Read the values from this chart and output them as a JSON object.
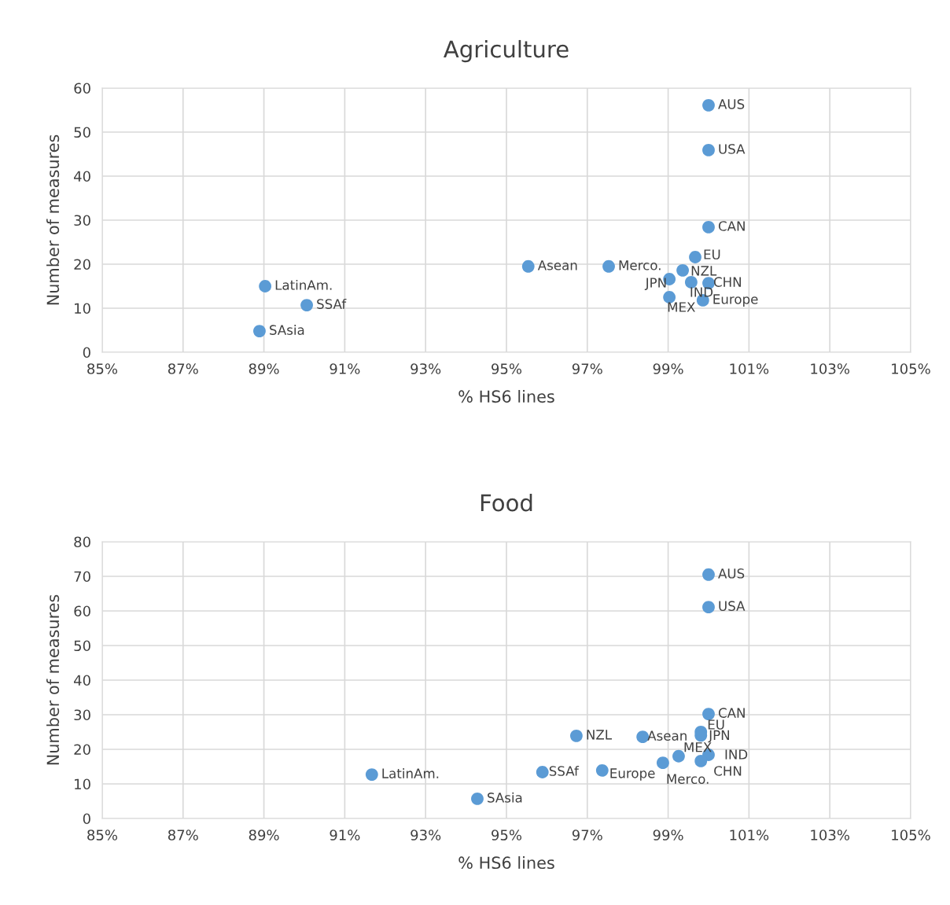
{
  "chart_data": [
    {
      "type": "scatter",
      "title": "Agriculture",
      "xlabel": "% HS6 lines",
      "ylabel": "Number of measures",
      "xlim": [
        85,
        105
      ],
      "ylim": [
        0,
        60
      ],
      "xticks": [
        {
          "value": 85,
          "label": "85%"
        },
        {
          "value": 87,
          "label": "87%"
        },
        {
          "value": 89,
          "label": "89%"
        },
        {
          "value": 91,
          "label": "91%"
        },
        {
          "value": 93,
          "label": "93%"
        },
        {
          "value": 95,
          "label": "95%"
        },
        {
          "value": 97,
          "label": "97%"
        },
        {
          "value": 99,
          "label": "99%"
        },
        {
          "value": 101,
          "label": "101%"
        },
        {
          "value": 103,
          "label": "103%"
        },
        {
          "value": 105,
          "label": "105%"
        }
      ],
      "yticks": [
        0,
        10,
        20,
        30,
        40,
        50,
        60
      ],
      "grid": true,
      "marker": "circle",
      "series": [
        {
          "color": "#5b9bd5",
          "x": [
            100.0,
            100.0,
            100.0,
            99.67,
            95.54,
            97.53,
            99.36,
            99.03,
            99.57,
            100.0,
            99.03,
            99.86,
            89.03,
            90.06,
            88.89
          ],
          "values": [
            56.1,
            45.9,
            28.4,
            21.6,
            19.5,
            19.5,
            18.6,
            16.6,
            15.9,
            15.7,
            12.5,
            11.8,
            15.0,
            10.7,
            4.8
          ]
        }
      ],
      "annotations": [
        {
          "text": "AUS",
          "x": 100.0,
          "y": 56.1
        },
        {
          "text": "USA",
          "x": 100.0,
          "y": 45.9
        },
        {
          "text": "CAN",
          "x": 100.0,
          "y": 28.4
        },
        {
          "text": "EU",
          "x": 99.67,
          "y": 21.6
        },
        {
          "text": "Asean",
          "x": 95.54,
          "y": 19.5
        },
        {
          "text": "Merco.",
          "x": 97.53,
          "y": 19.5
        },
        {
          "text": "NZL",
          "x": 99.36,
          "y": 18.6
        },
        {
          "text": "JPN",
          "x": 99.03,
          "y": 16.6
        },
        {
          "text": "IND",
          "x": 99.57,
          "y": 15.9
        },
        {
          "text": "CHN",
          "x": 100.0,
          "y": 15.7
        },
        {
          "text": "MEX",
          "x": 99.03,
          "y": 12.5
        },
        {
          "text": "Europe",
          "x": 99.86,
          "y": 11.8
        },
        {
          "text": "LatinAm.",
          "x": 89.03,
          "y": 15.0
        },
        {
          "text": "SSAf",
          "x": 90.06,
          "y": 10.7
        },
        {
          "text": "SAsia",
          "x": 88.89,
          "y": 4.8
        }
      ]
    },
    {
      "type": "scatter",
      "title": "Food",
      "xlabel": "% HS6 lines",
      "ylabel": "Number of measures",
      "xlim": [
        85,
        105
      ],
      "ylim": [
        0,
        80
      ],
      "xticks": [
        {
          "value": 85,
          "label": "85%"
        },
        {
          "value": 87,
          "label": "87%"
        },
        {
          "value": 89,
          "label": "89%"
        },
        {
          "value": 91,
          "label": "91%"
        },
        {
          "value": 93,
          "label": "93%"
        },
        {
          "value": 95,
          "label": "95%"
        },
        {
          "value": 97,
          "label": "97%"
        },
        {
          "value": 99,
          "label": "99%"
        },
        {
          "value": 101,
          "label": "101%"
        },
        {
          "value": 103,
          "label": "103%"
        },
        {
          "value": 105,
          "label": "105%"
        }
      ],
      "yticks": [
        0,
        10,
        20,
        30,
        40,
        50,
        60,
        70,
        80
      ],
      "grid": true,
      "marker": "circle",
      "series": [
        {
          "color": "#5b9bd5",
          "x": [
            100.0,
            100.0,
            100.0,
            99.81,
            99.81,
            96.73,
            98.37,
            99.26,
            100.0,
            98.87,
            99.81,
            95.89,
            97.37,
            91.67,
            94.28
          ],
          "values": [
            70.5,
            61.1,
            30.2,
            25.0,
            24.0,
            23.9,
            23.6,
            18.0,
            18.4,
            16.1,
            16.6,
            13.4,
            13.9,
            12.7,
            5.7
          ]
        }
      ],
      "annotations": [
        {
          "text": "AUS",
          "x": 100.0,
          "y": 70.5
        },
        {
          "text": "USA",
          "x": 100.0,
          "y": 61.1
        },
        {
          "text": "CAN",
          "x": 100.0,
          "y": 30.2
        },
        {
          "text": "EU",
          "x": 99.81,
          "y": 25.0
        },
        {
          "text": "JPN",
          "x": 99.81,
          "y": 24.0
        },
        {
          "text": "NZL",
          "x": 96.73,
          "y": 23.9
        },
        {
          "text": "Asean",
          "x": 98.37,
          "y": 23.6
        },
        {
          "text": "MEX",
          "x": 99.26,
          "y": 18.0
        },
        {
          "text": "IND",
          "x": 100.0,
          "y": 18.4
        },
        {
          "text": "Merco.",
          "x": 98.87,
          "y": 16.1
        },
        {
          "text": "CHN",
          "x": 99.81,
          "y": 16.6
        },
        {
          "text": "SSAf",
          "x": 95.89,
          "y": 13.4
        },
        {
          "text": "Europe",
          "x": 97.37,
          "y": 13.9
        },
        {
          "text": "LatinAm.",
          "x": 91.67,
          "y": 12.7
        },
        {
          "text": "SAsia",
          "x": 94.28,
          "y": 5.7
        }
      ]
    }
  ]
}
